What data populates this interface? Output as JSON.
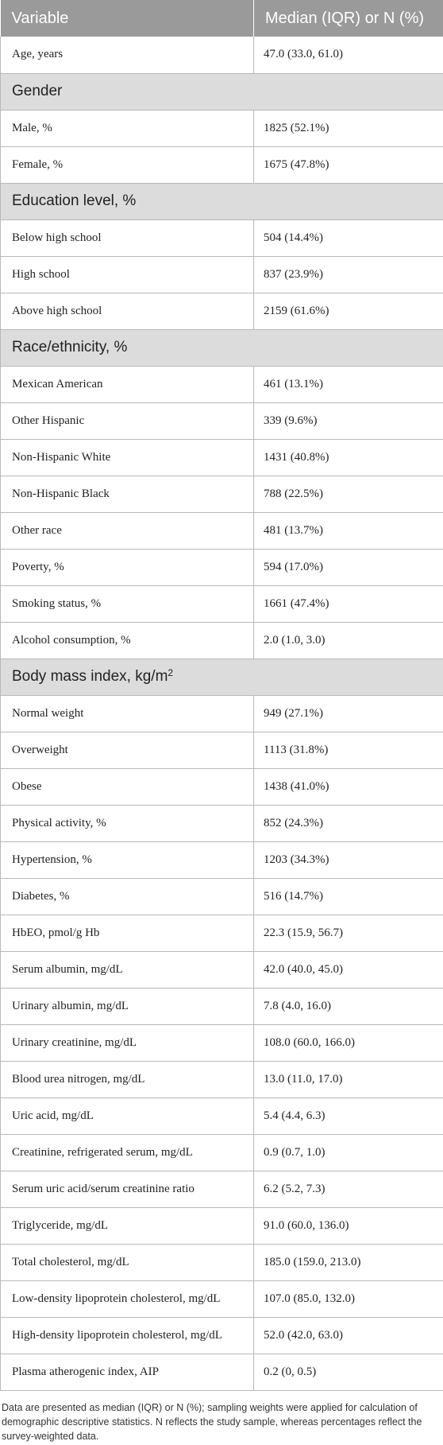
{
  "header": {
    "col_variable": "Variable",
    "col_value": "Median (IQR) or N (%)"
  },
  "rows": [
    {
      "type": "data",
      "label": "Age, years",
      "value": "47.0 (33.0, 61.0)"
    },
    {
      "type": "section",
      "label": "Gender"
    },
    {
      "type": "data",
      "label": "Male, %",
      "value": "1825 (52.1%)"
    },
    {
      "type": "data",
      "label": "Female, %",
      "value": "1675 (47.8%)"
    },
    {
      "type": "section",
      "label": "Education level, %"
    },
    {
      "type": "data",
      "label": "Below high school",
      "value": "504 (14.4%)"
    },
    {
      "type": "data",
      "label": "High school",
      "value": "837 (23.9%)"
    },
    {
      "type": "data",
      "label": "Above high school",
      "value": "2159 (61.6%)"
    },
    {
      "type": "section",
      "label": "Race/ethnicity, %"
    },
    {
      "type": "data",
      "label": "Mexican American",
      "value": "461 (13.1%)"
    },
    {
      "type": "data",
      "label": "Other Hispanic",
      "value": "339 (9.6%)"
    },
    {
      "type": "data",
      "label": "Non-Hispanic White",
      "value": "1431 (40.8%)"
    },
    {
      "type": "data",
      "label": "Non-Hispanic Black",
      "value": "788 (22.5%)"
    },
    {
      "type": "data",
      "label": "Other race",
      "value": "481 (13.7%)"
    },
    {
      "type": "data",
      "label": "Poverty, %",
      "value": "594 (17.0%)"
    },
    {
      "type": "data",
      "label": "Smoking status, %",
      "value": "1661 (47.4%)"
    },
    {
      "type": "data",
      "label": "Alcohol consumption, %",
      "value": "2.0 (1.0, 3.0)"
    },
    {
      "type": "section",
      "label": "Body mass index, kg/m",
      "sup": "2"
    },
    {
      "type": "data",
      "label": "Normal weight",
      "value": "949 (27.1%)"
    },
    {
      "type": "data",
      "label": "Overweight",
      "value": "1113 (31.8%)"
    },
    {
      "type": "data",
      "label": "Obese",
      "value": "1438 (41.0%)"
    },
    {
      "type": "data",
      "label": "Physical activity, %",
      "value": "852 (24.3%)"
    },
    {
      "type": "data",
      "label": "Hypertension, %",
      "value": "1203 (34.3%)"
    },
    {
      "type": "data",
      "label": "Diabetes, %",
      "value": "516 (14.7%)"
    },
    {
      "type": "data",
      "label": "HbEO, pmol/g Hb",
      "value": "22.3 (15.9, 56.7)"
    },
    {
      "type": "data",
      "label": "Serum albumin, mg/dL",
      "value": "42.0 (40.0, 45.0)"
    },
    {
      "type": "data",
      "label": "Urinary albumin, mg/dL",
      "value": "7.8 (4.0, 16.0)"
    },
    {
      "type": "data",
      "label": "Urinary creatinine, mg/dL",
      "value": "108.0 (60.0, 166.0)"
    },
    {
      "type": "data",
      "label": "Blood urea nitrogen, mg/dL",
      "value": "13.0 (11.0, 17.0)"
    },
    {
      "type": "data",
      "label": "Uric acid, mg/dL",
      "value": "5.4 (4.4, 6.3)"
    },
    {
      "type": "data",
      "label": "Creatinine, refrigerated serum, mg/dL",
      "value": "0.9 (0.7, 1.0)"
    },
    {
      "type": "data",
      "label": "Serum uric acid/serum creatinine ratio",
      "value": "6.2 (5.2, 7.3)"
    },
    {
      "type": "data",
      "label": "Triglyceride, mg/dL",
      "value": "91.0 (60.0, 136.0)"
    },
    {
      "type": "data",
      "label": "Total cholesterol, mg/dL",
      "value": "185.0 (159.0, 213.0)"
    },
    {
      "type": "data",
      "label": "Low-density lipoprotein cholesterol, mg/dL",
      "value": "107.0 (85.0, 132.0)"
    },
    {
      "type": "data",
      "label": "High-density lipoprotein cholesterol, mg/dL",
      "value": "52.0 (42.0, 63.0)"
    },
    {
      "type": "data",
      "label": "Plasma atherogenic index, AIP",
      "value": "0.2 (0, 0.5)"
    }
  ],
  "footnote": "Data are presented as median (IQR) or N (%); sampling weights were applied for calculation of demographic descriptive statistics. N reflects the study sample, whereas percentages reflect the survey-weighted data."
}
